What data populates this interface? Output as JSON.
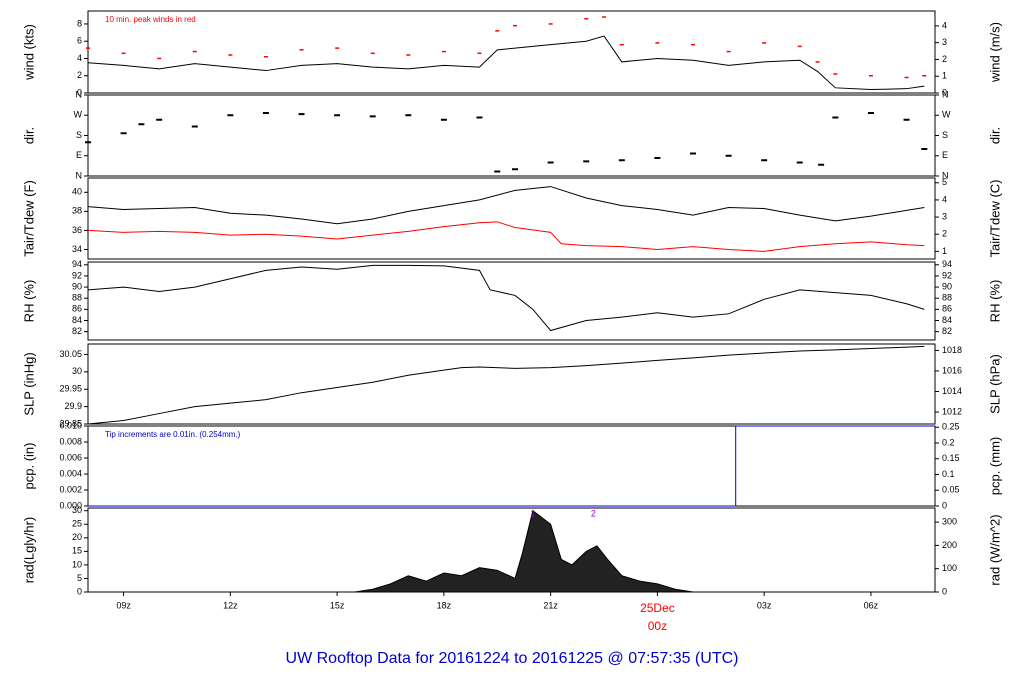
{
  "title": "UW Rooftop Data for 20161224  to  20161225 @ 07:57:35  (UTC)",
  "colors": {
    "temp": "#000000",
    "dew": "#ff0000",
    "peak": "#ff0000",
    "pcp": "#0000cc",
    "title": "#0000cc",
    "date": "#ff0000",
    "rad_marker": "#9900cc"
  },
  "chart_data": [
    {
      "type": "line",
      "panel": "wind",
      "ylabel": "wind (kts)",
      "ylabel_right": "wind (m/s)",
      "ylim": [
        0,
        9.5
      ],
      "yticks": [
        0,
        2,
        4,
        6,
        8
      ],
      "yticks_right": [
        0,
        1,
        2,
        3,
        4
      ],
      "right_scale": 0.5144,
      "annotation": "10 min. peak winds in red",
      "series": [
        {
          "role": "speed",
          "x": [
            8,
            9,
            10,
            11,
            12,
            13,
            14,
            15,
            16,
            17,
            18,
            19,
            19.5,
            20,
            21,
            22,
            22.5,
            23,
            24,
            25,
            26,
            27,
            28,
            28.5,
            29,
            30,
            31,
            31.5
          ],
          "values": [
            3.5,
            3.2,
            2.8,
            3.4,
            3.0,
            2.6,
            3.2,
            3.4,
            3.0,
            2.8,
            3.2,
            3.0,
            5.0,
            5.2,
            5.6,
            6.0,
            6.6,
            3.6,
            4.0,
            3.8,
            3.2,
            3.6,
            3.8,
            2.5,
            0.6,
            0.4,
            0.5,
            0.8
          ]
        },
        {
          "role": "peak",
          "x": [
            8,
            9,
            10,
            11,
            12,
            13,
            14,
            15,
            16,
            17,
            18,
            19,
            19.5,
            20,
            21,
            22,
            22.5,
            23,
            24,
            25,
            26,
            27,
            28,
            28.5,
            29,
            30,
            31,
            31.5
          ],
          "values": [
            5.2,
            4.6,
            4.0,
            4.8,
            4.4,
            4.2,
            5.0,
            5.2,
            4.6,
            4.4,
            4.8,
            4.6,
            7.2,
            7.8,
            8.0,
            8.6,
            8.8,
            5.6,
            5.8,
            5.6,
            4.8,
            5.8,
            5.4,
            3.6,
            2.2,
            2.0,
            1.8,
            2.0
          ]
        }
      ]
    },
    {
      "type": "scatter",
      "panel": "dir",
      "ylabel": "dir.",
      "ylabel_right": "dir.",
      "ylim": [
        0,
        360
      ],
      "yticks": [
        0,
        90,
        180,
        270,
        360
      ],
      "yticklabels": [
        "N",
        "E",
        "S",
        "W",
        "N"
      ],
      "series": [
        {
          "role": "direction",
          "x": [
            8,
            9,
            9.5,
            10,
            11,
            12,
            13,
            14,
            15,
            16,
            17,
            18,
            19,
            19.5,
            20,
            21,
            22,
            23,
            24,
            25,
            26,
            27,
            28,
            28.6,
            29,
            30,
            31,
            31.5
          ],
          "values": [
            150,
            190,
            230,
            250,
            220,
            270,
            280,
            275,
            270,
            265,
            270,
            250,
            260,
            20,
            30,
            60,
            65,
            70,
            80,
            100,
            90,
            70,
            60,
            50,
            260,
            280,
            250,
            120
          ]
        }
      ]
    },
    {
      "type": "line",
      "panel": "temp",
      "ylabel": "Tair/Tdew (F)",
      "ylabel_right": "Tair/Tdew (C)",
      "ylim": [
        33,
        41.5
      ],
      "yticks": [
        34,
        36,
        38,
        40
      ],
      "yticks_right": [
        1,
        2,
        3,
        4,
        5
      ],
      "series": [
        {
          "role": "air",
          "x": [
            8,
            9,
            10,
            11,
            12,
            13,
            14,
            15,
            16,
            17,
            18,
            19,
            20,
            21,
            22,
            23,
            24,
            25,
            26,
            27,
            28,
            29,
            30,
            31,
            31.5
          ],
          "values": [
            38.5,
            38.2,
            38.3,
            38.4,
            37.8,
            37.6,
            37.2,
            36.7,
            37.2,
            38.0,
            38.6,
            39.2,
            40.2,
            40.6,
            39.4,
            38.6,
            38.2,
            37.6,
            38.4,
            38.3,
            37.6,
            37.0,
            37.5,
            38.1,
            38.4
          ]
        },
        {
          "role": "dew",
          "x": [
            8,
            9,
            10,
            11,
            12,
            13,
            14,
            15,
            16,
            17,
            18,
            19,
            19.5,
            20,
            21,
            21.3,
            22,
            23,
            24,
            25,
            26,
            27,
            28,
            29,
            30,
            31,
            31.5
          ],
          "values": [
            36.0,
            35.8,
            35.9,
            35.8,
            35.5,
            35.6,
            35.4,
            35.1,
            35.5,
            35.9,
            36.4,
            36.8,
            36.9,
            36.3,
            35.8,
            34.6,
            34.4,
            34.3,
            34.0,
            34.3,
            34.0,
            33.8,
            34.3,
            34.6,
            34.8,
            34.5,
            34.4
          ]
        }
      ]
    },
    {
      "type": "line",
      "panel": "rh",
      "ylabel": "RH (%)",
      "ylabel_right": "RH (%)",
      "ylim": [
        80.5,
        94.5
      ],
      "yticks": [
        82,
        84,
        86,
        88,
        90,
        92,
        94
      ],
      "series": [
        {
          "role": "rh",
          "x": [
            8,
            9,
            10,
            11,
            12,
            13,
            14,
            15,
            16,
            17,
            18,
            19,
            19.3,
            20,
            20.5,
            21,
            22,
            23,
            24,
            25,
            26,
            27,
            28,
            29,
            30,
            31,
            31.5
          ],
          "values": [
            89.5,
            90.0,
            89.2,
            90.0,
            91.5,
            93.0,
            93.6,
            93.2,
            93.9,
            93.9,
            93.8,
            93.0,
            89.5,
            88.5,
            86.0,
            82.2,
            84.0,
            84.6,
            85.4,
            84.6,
            85.2,
            87.8,
            89.5,
            89.0,
            88.5,
            87.0,
            86.0
          ]
        }
      ]
    },
    {
      "type": "line",
      "panel": "slp",
      "ylabel": "SLP (inHg)",
      "ylabel_right": "SLP (hPa)",
      "ylim": [
        29.85,
        30.08
      ],
      "yticks": [
        29.85,
        29.9,
        29.95,
        30.0,
        30.05
      ],
      "yticks_right": [
        1012,
        1014,
        1016,
        1018
      ],
      "series": [
        {
          "role": "slp",
          "x": [
            8,
            9,
            10,
            11,
            12,
            13,
            14,
            15,
            16,
            17,
            18,
            18.5,
            19,
            20,
            21,
            22,
            23,
            24,
            25,
            26,
            27,
            28,
            29,
            30,
            31,
            31.5
          ],
          "values": [
            29.85,
            29.86,
            29.88,
            29.9,
            29.91,
            29.92,
            29.94,
            29.955,
            29.97,
            29.99,
            30.005,
            30.012,
            30.014,
            30.01,
            30.012,
            30.018,
            30.025,
            30.033,
            30.04,
            30.048,
            30.054,
            30.06,
            30.063,
            30.067,
            30.071,
            30.073
          ]
        }
      ]
    },
    {
      "type": "line",
      "panel": "pcp",
      "ylabel": "pcp. (in)",
      "ylabel_right": "pcp. (mm)",
      "ylim": [
        0,
        0.01
      ],
      "yticks": [
        0.0,
        0.002,
        0.004,
        0.006,
        0.008,
        0.01
      ],
      "ytick_format": [
        "0.000",
        "0.002",
        "0.004",
        "0.006",
        "0.008",
        "0.010"
      ],
      "yticks_right": [
        0,
        0.05,
        0.1,
        0.15,
        0.2,
        0.25
      ],
      "annotation": "Tip increments are 0.01in. (0.254mm.)",
      "series": [
        {
          "role": "pcp",
          "x": [
            8,
            26.2,
            26.2,
            31.8
          ],
          "values": [
            0,
            0,
            0.01,
            0.01
          ]
        }
      ]
    },
    {
      "type": "area",
      "panel": "rad",
      "ylabel": "rad(Lgly/hr)",
      "ylabel_right": "rad (W/m^2)",
      "ylim": [
        0,
        31
      ],
      "yticks": [
        0,
        5,
        10,
        15,
        20,
        25,
        30
      ],
      "yticks_right": [
        0,
        100,
        200,
        300
      ],
      "markers": [
        "1",
        "2"
      ],
      "series": [
        {
          "role": "rad",
          "x": [
            15.5,
            16,
            16.5,
            17,
            17.5,
            18,
            18.5,
            19,
            19.5,
            20,
            20.2,
            20.5,
            21,
            21.3,
            21.6,
            22,
            22.3,
            22.6,
            23,
            23.5,
            24,
            24.5,
            25
          ],
          "values": [
            0,
            1,
            3,
            6,
            4,
            7,
            6,
            9,
            8,
            5,
            14,
            30,
            25,
            12,
            10,
            15,
            17,
            12,
            6,
            4,
            3,
            1,
            0
          ]
        }
      ]
    }
  ],
  "xaxis": {
    "tick_labels": [
      "09z",
      "12z",
      "15z",
      "18z",
      "21z",
      "03z",
      "06z"
    ],
    "date_label": "25Dec",
    "midnight_label": "00z"
  }
}
